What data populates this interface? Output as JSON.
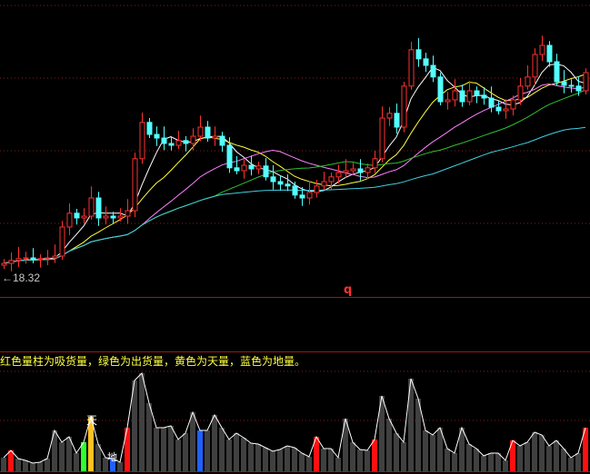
{
  "chart_data": {
    "type": "candlestick",
    "price_panel": {
      "low_marker": "18.32",
      "close": [
        18.52,
        18.6,
        18.65,
        18.67,
        18.62,
        18.65,
        18.67,
        18.72,
        19.52,
        19.9,
        19.77,
        19.82,
        20.32,
        19.77,
        19.82,
        19.77,
        19.82,
        19.97,
        21.4,
        22.4,
        22.07,
        21.97,
        21.82,
        21.77,
        21.9,
        21.82,
        22.02,
        22.27,
        21.97,
        22.02,
        21.77,
        21.15,
        21.07,
        21.22,
        21.12,
        21.2,
        20.9,
        20.77,
        20.7,
        20.65,
        20.4,
        20.32,
        20.47,
        20.65,
        20.77,
        20.9,
        21.02,
        21.07,
        21.12,
        21.02,
        21.15,
        21.4,
        22.52,
        22.65,
        22.27,
        23.4,
        24.4,
        24.15,
        23.97,
        23.65,
        22.97,
        23.02,
        23.27,
        22.97,
        23.27,
        23.15,
        23.07,
        22.82,
        22.72,
        22.77,
        23.02,
        23.4,
        23.65,
        24.27,
        24.52,
        24.07,
        23.52,
        23.42,
        23.4,
        23.27,
        23.77
      ],
      "moving_averages": [
        {
          "period": 5,
          "color": "#ffffff"
        },
        {
          "period": 10,
          "color": "#ffff40"
        },
        {
          "period": 20,
          "color": "#ff80ff"
        },
        {
          "period": 30,
          "color": "#30c030"
        },
        {
          "period": 60,
          "color": "#40d0e0"
        }
      ],
      "up_color": "#ff3030",
      "down_color": "#54ffff",
      "marker": "q"
    },
    "volume_panel": {
      "note": "红色量柱为吸货量，绿色为出货量，黄色为天量，蓝色为地量。",
      "volume": [
        15,
        23,
        14,
        12,
        9,
        10,
        14,
        45,
        32,
        38,
        20,
        32,
        60,
        30,
        15,
        14,
        10,
        48,
        100,
        108,
        75,
        48,
        48,
        50,
        35,
        42,
        65,
        45,
        45,
        62,
        48,
        35,
        42,
        37,
        31,
        30,
        26,
        22,
        24,
        28,
        26,
        20,
        16,
        38,
        25,
        25,
        15,
        58,
        32,
        24,
        23,
        35,
        83,
        58,
        42,
        32,
        102,
        80,
        45,
        40,
        48,
        25,
        20,
        48,
        30,
        25,
        17,
        20,
        20,
        12,
        34,
        28,
        32,
        43,
        40,
        28,
        34,
        25,
        15,
        20,
        48
      ],
      "red_bars": [
        1,
        17,
        43,
        51,
        70,
        80
      ],
      "green_bars": [
        11
      ],
      "yellow_bars": [
        12
      ],
      "blue_bars": [
        15,
        27
      ],
      "tian_label": "天",
      "di_label": "地",
      "bar_color": "#404040",
      "colors": {
        "red": "#ff1010",
        "green": "#30ff30",
        "yellow": "#ffc020",
        "blue": "#2060ff"
      }
    }
  }
}
